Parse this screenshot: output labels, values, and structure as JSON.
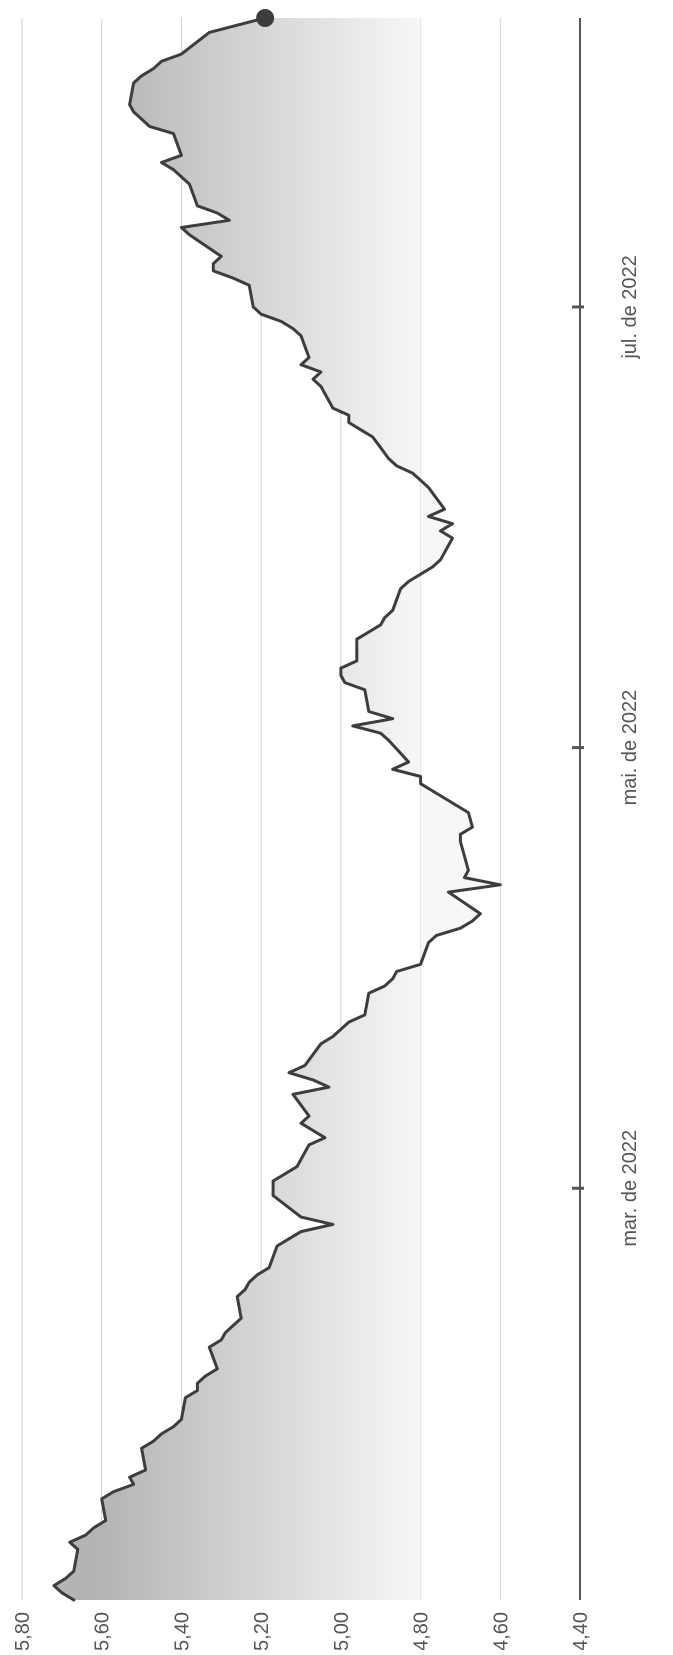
{
  "chart_data": {
    "type": "area",
    "title": "",
    "xlabel": "",
    "ylabel": "",
    "ylim": [
      4.4,
      5.8
    ],
    "y_ticks": [
      4.4,
      4.6,
      4.8,
      5.0,
      5.2,
      5.4,
      5.6,
      5.8
    ],
    "y_tick_labels": [
      "4,40",
      "4,60",
      "4,80",
      "5,00",
      "5,20",
      "5,40",
      "5,60",
      "5,80"
    ],
    "x_ticks": [
      {
        "date": "2022-03-01",
        "label": "mar. de 2022"
      },
      {
        "date": "2022-05-01",
        "label": "mai. de 2022"
      },
      {
        "date": "2022-07-01",
        "label": "jul. de 2022"
      }
    ],
    "xlim": [
      "2022-01-03",
      "2022-08-10"
    ],
    "grid": true,
    "legend": "none",
    "colors": {
      "line": "#3d3d3d",
      "area_dark": "#b4b4b4",
      "area_light": "#f7f7f7",
      "grid": "#d2d2d2",
      "axis": "#555555",
      "label": "#555555"
    },
    "series": [
      {
        "x": [
          "2022-01-03",
          "2022-01-04",
          "2022-01-05",
          "2022-01-06",
          "2022-01-07",
          "2022-01-10",
          "2022-01-11",
          "2022-01-12",
          "2022-01-13",
          "2022-01-14",
          "2022-01-17",
          "2022-01-18",
          "2022-01-19",
          "2022-01-20",
          "2022-01-21",
          "2022-01-24",
          "2022-01-25",
          "2022-01-26",
          "2022-01-27",
          "2022-01-28",
          "2022-01-31",
          "2022-02-01",
          "2022-02-02",
          "2022-02-03",
          "2022-02-04",
          "2022-02-07",
          "2022-02-08",
          "2022-02-09",
          "2022-02-10",
          "2022-02-11",
          "2022-02-14",
          "2022-02-15",
          "2022-02-16",
          "2022-02-17",
          "2022-02-18",
          "2022-02-21",
          "2022-02-22",
          "2022-02-23",
          "2022-02-24",
          "2022-02-25",
          "2022-02-28",
          "2022-03-02",
          "2022-03-03",
          "2022-03-04",
          "2022-03-07",
          "2022-03-08",
          "2022-03-09",
          "2022-03-10",
          "2022-03-11",
          "2022-03-14",
          "2022-03-15",
          "2022-03-16",
          "2022-03-17",
          "2022-03-18",
          "2022-03-21",
          "2022-03-22",
          "2022-03-23",
          "2022-03-24",
          "2022-03-25",
          "2022-03-28",
          "2022-03-29",
          "2022-03-30",
          "2022-03-31",
          "2022-04-01",
          "2022-04-04",
          "2022-04-05",
          "2022-04-06",
          "2022-04-07",
          "2022-04-08",
          "2022-04-11",
          "2022-04-12",
          "2022-04-13",
          "2022-04-14",
          "2022-04-18",
          "2022-04-19",
          "2022-04-20",
          "2022-04-22",
          "2022-04-25",
          "2022-04-26",
          "2022-04-27",
          "2022-04-28",
          "2022-04-29",
          "2022-05-02",
          "2022-05-03",
          "2022-05-04",
          "2022-05-05",
          "2022-05-06",
          "2022-05-09",
          "2022-05-10",
          "2022-05-11",
          "2022-05-12",
          "2022-05-13",
          "2022-05-16",
          "2022-05-17",
          "2022-05-18",
          "2022-05-19",
          "2022-05-20",
          "2022-05-23",
          "2022-05-24",
          "2022-05-25",
          "2022-05-26",
          "2022-05-27",
          "2022-05-30",
          "2022-05-31",
          "2022-06-01",
          "2022-06-02",
          "2022-06-03",
          "2022-06-06",
          "2022-06-07",
          "2022-06-08",
          "2022-06-09",
          "2022-06-10",
          "2022-06-13",
          "2022-06-14",
          "2022-06-15",
          "2022-06-16",
          "2022-06-17",
          "2022-06-20",
          "2022-06-21",
          "2022-06-22",
          "2022-06-23",
          "2022-06-24",
          "2022-06-27",
          "2022-06-28",
          "2022-06-29",
          "2022-06-30",
          "2022-07-01",
          "2022-07-04",
          "2022-07-05",
          "2022-07-06",
          "2022-07-07",
          "2022-07-08",
          "2022-07-11",
          "2022-07-12",
          "2022-07-13",
          "2022-07-14",
          "2022-07-15",
          "2022-07-18",
          "2022-07-19",
          "2022-07-20",
          "2022-07-21",
          "2022-07-22",
          "2022-07-25",
          "2022-07-26",
          "2022-07-27",
          "2022-07-28",
          "2022-07-29",
          "2022-08-01",
          "2022-08-02",
          "2022-08-03",
          "2022-08-04",
          "2022-08-05",
          "2022-08-08",
          "2022-08-09",
          "2022-08-10"
        ],
        "values": [
          5.67,
          5.7,
          5.72,
          5.69,
          5.67,
          5.66,
          5.68,
          5.64,
          5.62,
          5.59,
          5.6,
          5.57,
          5.52,
          5.53,
          5.49,
          5.5,
          5.47,
          5.45,
          5.42,
          5.4,
          5.39,
          5.36,
          5.36,
          5.34,
          5.31,
          5.33,
          5.3,
          5.29,
          5.27,
          5.25,
          5.26,
          5.24,
          5.23,
          5.21,
          5.18,
          5.16,
          5.13,
          5.1,
          5.02,
          5.1,
          5.17,
          5.17,
          5.14,
          5.11,
          5.08,
          5.04,
          5.07,
          5.1,
          5.08,
          5.12,
          5.03,
          5.07,
          5.13,
          5.09,
          5.05,
          5.02,
          5.0,
          4.98,
          4.94,
          4.93,
          4.89,
          4.87,
          4.86,
          4.8,
          4.78,
          4.76,
          4.7,
          4.67,
          4.65,
          4.73,
          4.6,
          4.69,
          4.68,
          4.7,
          4.7,
          4.67,
          4.68,
          4.77,
          4.8,
          4.8,
          4.87,
          4.83,
          4.88,
          4.9,
          4.97,
          4.87,
          4.93,
          4.94,
          4.99,
          5.0,
          5.0,
          4.96,
          4.96,
          4.93,
          4.9,
          4.89,
          4.87,
          4.85,
          4.83,
          4.8,
          4.77,
          4.75,
          4.72,
          4.75,
          4.72,
          4.78,
          4.74,
          4.78,
          4.8,
          4.82,
          4.86,
          4.88,
          4.92,
          4.95,
          4.98,
          4.98,
          5.02,
          5.05,
          5.07,
          5.05,
          5.1,
          5.08,
          5.1,
          5.12,
          5.15,
          5.2,
          5.22,
          5.23,
          5.27,
          5.32,
          5.32,
          5.3,
          5.38,
          5.4,
          5.28,
          5.31,
          5.36,
          5.38,
          5.4,
          5.42,
          5.45,
          5.4,
          5.42,
          5.48,
          5.5,
          5.52,
          5.53,
          5.52,
          5.5,
          5.47,
          5.45,
          5.4,
          5.33,
          5.26,
          5.19
        ]
      }
    ]
  }
}
